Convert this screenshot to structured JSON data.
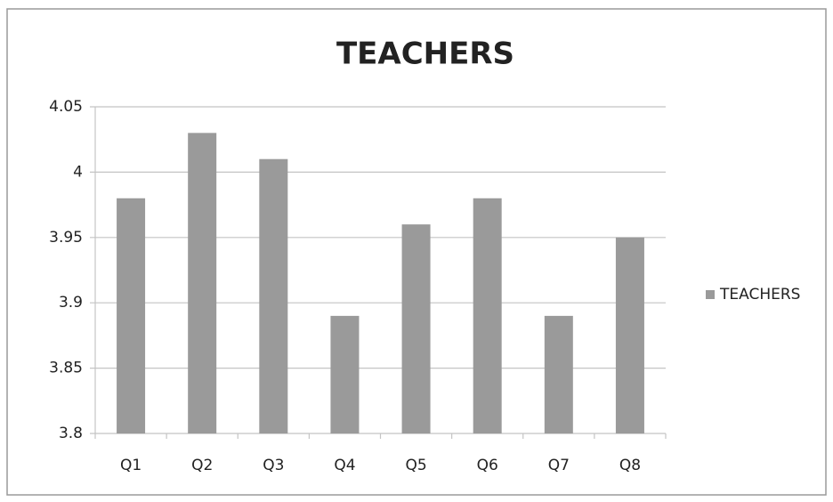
{
  "chart_data": {
    "type": "bar",
    "title": "TEACHERS",
    "categories": [
      "Q1",
      "Q2",
      "Q3",
      "Q4",
      "Q5",
      "Q6",
      "Q7",
      "Q8"
    ],
    "series": [
      {
        "name": "TEACHERS",
        "color": "#9a9a9a",
        "values": [
          3.98,
          4.03,
          4.01,
          3.89,
          3.96,
          3.98,
          3.89,
          3.95
        ]
      }
    ],
    "ylim": [
      3.8,
      4.05
    ],
    "yticks": [
      3.8,
      3.85,
      3.9,
      3.95,
      4,
      4.05
    ],
    "grid": true,
    "legend": "right"
  }
}
